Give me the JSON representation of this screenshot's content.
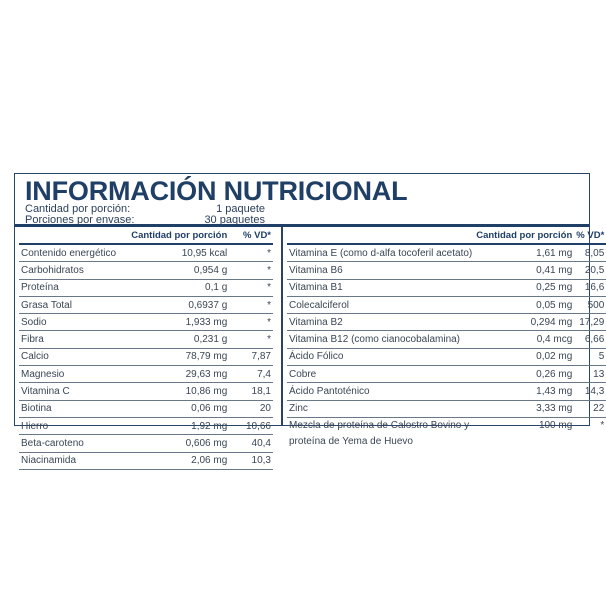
{
  "title": "INFORMACIÓN NUTRICIONAL",
  "serving": [
    {
      "label": "Cantidad por porción:",
      "value": "1 paquete"
    },
    {
      "label": "Porciones por envase:",
      "value": "30 paquetes"
    }
  ],
  "headers": {
    "qty": "Cantidad por porción",
    "vd": "% VD*"
  },
  "left_rows": [
    {
      "name": "Contenido energético",
      "qty": "10,95 kcal",
      "vd": "*"
    },
    {
      "name": "Carbohidratos",
      "qty": "0,954 g",
      "vd": "*"
    },
    {
      "name": "Proteína",
      "qty": "0,1 g",
      "vd": "*"
    },
    {
      "name": "Grasa Total",
      "qty": "0,6937 g",
      "vd": "*"
    },
    {
      "name": "Sodio",
      "qty": "1,933 mg",
      "vd": "*"
    },
    {
      "name": "Fibra",
      "qty": "0,231 g",
      "vd": "*"
    },
    {
      "name": "Calcio",
      "qty": "78,79 mg",
      "vd": "7,87"
    },
    {
      "name": "Magnesio",
      "qty": "29,63 mg",
      "vd": "7,4"
    },
    {
      "name": "Vitamina C",
      "qty": "10,86 mg",
      "vd": "18,1"
    },
    {
      "name": "Biotina",
      "qty": "0,06 mg",
      "vd": "20"
    },
    {
      "name": "Hierro",
      "qty": "1,92 mg",
      "vd": "10,66"
    },
    {
      "name": "Beta-caroteno",
      "qty": "0,606 mg",
      "vd": "40,4"
    },
    {
      "name": "Niacinamida",
      "qty": "2,06 mg",
      "vd": "10,3"
    }
  ],
  "right_rows": [
    {
      "name": "Vitamina E (como d-alfa tocoferil acetato)",
      "qty": "1,61 mg",
      "vd": "8,05"
    },
    {
      "name": "Vitamina B6",
      "qty": "0,41 mg",
      "vd": "20,5"
    },
    {
      "name": "Vitamina B1",
      "qty": "0,25 mg",
      "vd": "16,6"
    },
    {
      "name": "Colecalciferol",
      "qty": "0,05 mg",
      "vd": "500"
    },
    {
      "name": "Vitamina B2",
      "qty": "0,294 mg",
      "vd": "17,29"
    },
    {
      "name": "Vitamina B12 (como cianocobalamina)",
      "qty": "0,4 mcg",
      "vd": "6,66"
    },
    {
      "name": "Ácido Fólico",
      "qty": "0,02 mg",
      "vd": "5"
    },
    {
      "name": "Cobre",
      "qty": "0,26 mg",
      "vd": "13"
    },
    {
      "name": "Ácido Pantoténico",
      "qty": "1,43 mg",
      "vd": "14,3"
    },
    {
      "name": "Zinc",
      "qty": "3,33 mg",
      "vd": "22"
    },
    {
      "name": "Mezcla de proteína de Calostro Bovino y proteína de Yema de Huevo",
      "qty": "100 mg",
      "vd": "*"
    }
  ],
  "colors": {
    "brand": "#1f3f66",
    "text": "#3a4654"
  }
}
